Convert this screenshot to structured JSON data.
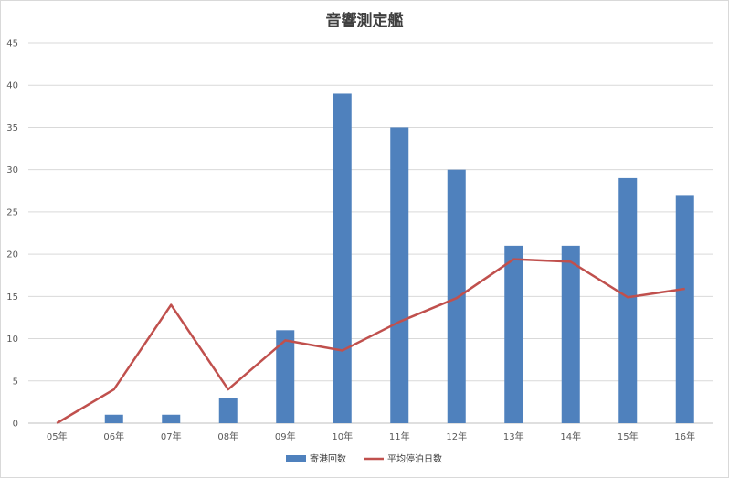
{
  "chart_data": {
    "type": "bar",
    "title": "音響測定艦",
    "categories": [
      "05年",
      "06年",
      "07年",
      "08年",
      "09年",
      "10年",
      "11年",
      "12年",
      "13年",
      "14年",
      "15年",
      "16年"
    ],
    "series": [
      {
        "name": "寄港回数",
        "type": "bar",
        "color": "#4f81bd",
        "values": [
          0,
          1,
          1,
          3,
          11,
          39,
          35,
          30,
          21,
          21,
          29,
          27
        ]
      },
      {
        "name": "平均停泊日数",
        "type": "line",
        "color": "#c0504d",
        "values": [
          0,
          4,
          14,
          4,
          9.8,
          8.6,
          12,
          14.8,
          19.4,
          19.1,
          14.9,
          15.9
        ]
      }
    ],
    "ylim": [
      0,
      45
    ],
    "yticks": [
      0,
      5,
      10,
      15,
      20,
      25,
      30,
      35,
      40,
      45
    ],
    "grid": true,
    "legend": "bottom-center"
  }
}
